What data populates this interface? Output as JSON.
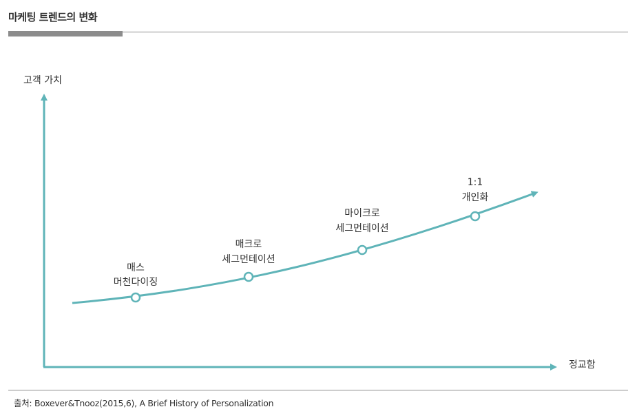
{
  "title": "마케팅 트렌드의 변화",
  "colors": {
    "curve": "#5fb4b8",
    "rule": "#8c8c8c",
    "text": "#333333"
  },
  "axes": {
    "y_label": "고객 가치",
    "x_label": "정교함"
  },
  "stages": [
    {
      "line1": "매스",
      "line2": "머천다이징"
    },
    {
      "line1": "매크로",
      "line2": "세그먼테이션"
    },
    {
      "line1": "마이크로",
      "line2": "세그먼테이션"
    },
    {
      "line1": "1:1",
      "line2": "개인화"
    }
  ],
  "source": "출처: Boxever&Tnooz(2015,6), A Brief History of Personalization"
}
